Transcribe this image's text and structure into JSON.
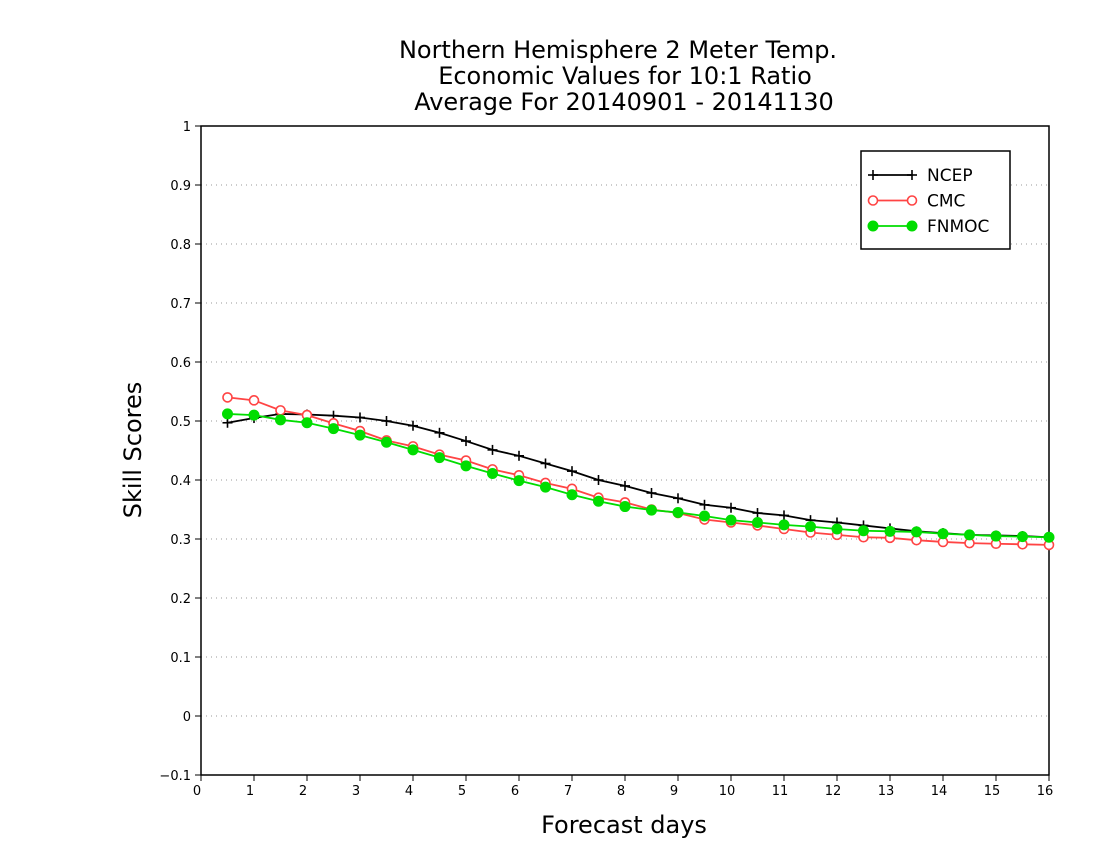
{
  "chart_data": {
    "type": "line",
    "title_lines": [
      "Northern Hemisphere 2 Meter Temp.",
      "Economic Values for 10:1 Ratio",
      "Average For 20140901 - 20141130"
    ],
    "xlabel": "Forecast days",
    "ylabel": "Skill Scores",
    "xlim": [
      0,
      16
    ],
    "ylim": [
      -0.1,
      1
    ],
    "xticks": [
      "0",
      "1",
      "2",
      "3",
      "4",
      "5",
      "6",
      "7",
      "8",
      "9",
      "10",
      "11",
      "12",
      "13",
      "14",
      "15",
      "16"
    ],
    "yticks": [
      "−0.1",
      "0",
      "0.1",
      "0.2",
      "0.3",
      "0.4",
      "0.5",
      "0.6",
      "0.7",
      "0.8",
      "0.9",
      "1"
    ],
    "grid": "horizontal dotted",
    "legend_position": "top-right",
    "x": [
      0.5,
      1,
      1.5,
      2,
      2.5,
      3,
      3.5,
      4,
      4.5,
      5,
      5.5,
      6,
      6.5,
      7,
      7.5,
      8,
      8.5,
      9,
      9.5,
      10,
      10.5,
      11,
      11.5,
      12,
      12.5,
      13,
      13.5,
      14,
      14.5,
      15,
      15.5,
      16
    ],
    "series": [
      {
        "name": "NCEP",
        "color": "#000000",
        "marker": "plus",
        "values": [
          0.497,
          0.505,
          0.512,
          0.511,
          0.509,
          0.506,
          0.5,
          0.492,
          0.48,
          0.466,
          0.451,
          0.441,
          0.428,
          0.415,
          0.4,
          0.39,
          0.378,
          0.369,
          0.358,
          0.353,
          0.344,
          0.34,
          0.332,
          0.328,
          0.323,
          0.318,
          0.313,
          0.31,
          0.307,
          0.306,
          0.305,
          0.303
        ]
      },
      {
        "name": "CMC",
        "color": "#ff4444",
        "marker": "open-circle",
        "values": [
          0.54,
          0.535,
          0.518,
          0.51,
          0.496,
          0.483,
          0.467,
          0.457,
          0.443,
          0.433,
          0.418,
          0.408,
          0.395,
          0.385,
          0.37,
          0.362,
          0.35,
          0.344,
          0.333,
          0.328,
          0.323,
          0.317,
          0.311,
          0.307,
          0.303,
          0.302,
          0.298,
          0.295,
          0.293,
          0.292,
          0.291,
          0.29
        ]
      },
      {
        "name": "FNMOC",
        "color": "#00dd00",
        "marker": "filled-circle",
        "values": [
          0.512,
          0.51,
          0.502,
          0.497,
          0.487,
          0.476,
          0.464,
          0.451,
          0.438,
          0.424,
          0.411,
          0.399,
          0.388,
          0.375,
          0.364,
          0.355,
          0.349,
          0.345,
          0.339,
          0.332,
          0.328,
          0.324,
          0.321,
          0.317,
          0.314,
          0.313,
          0.312,
          0.309,
          0.307,
          0.305,
          0.304,
          0.303
        ]
      }
    ]
  }
}
